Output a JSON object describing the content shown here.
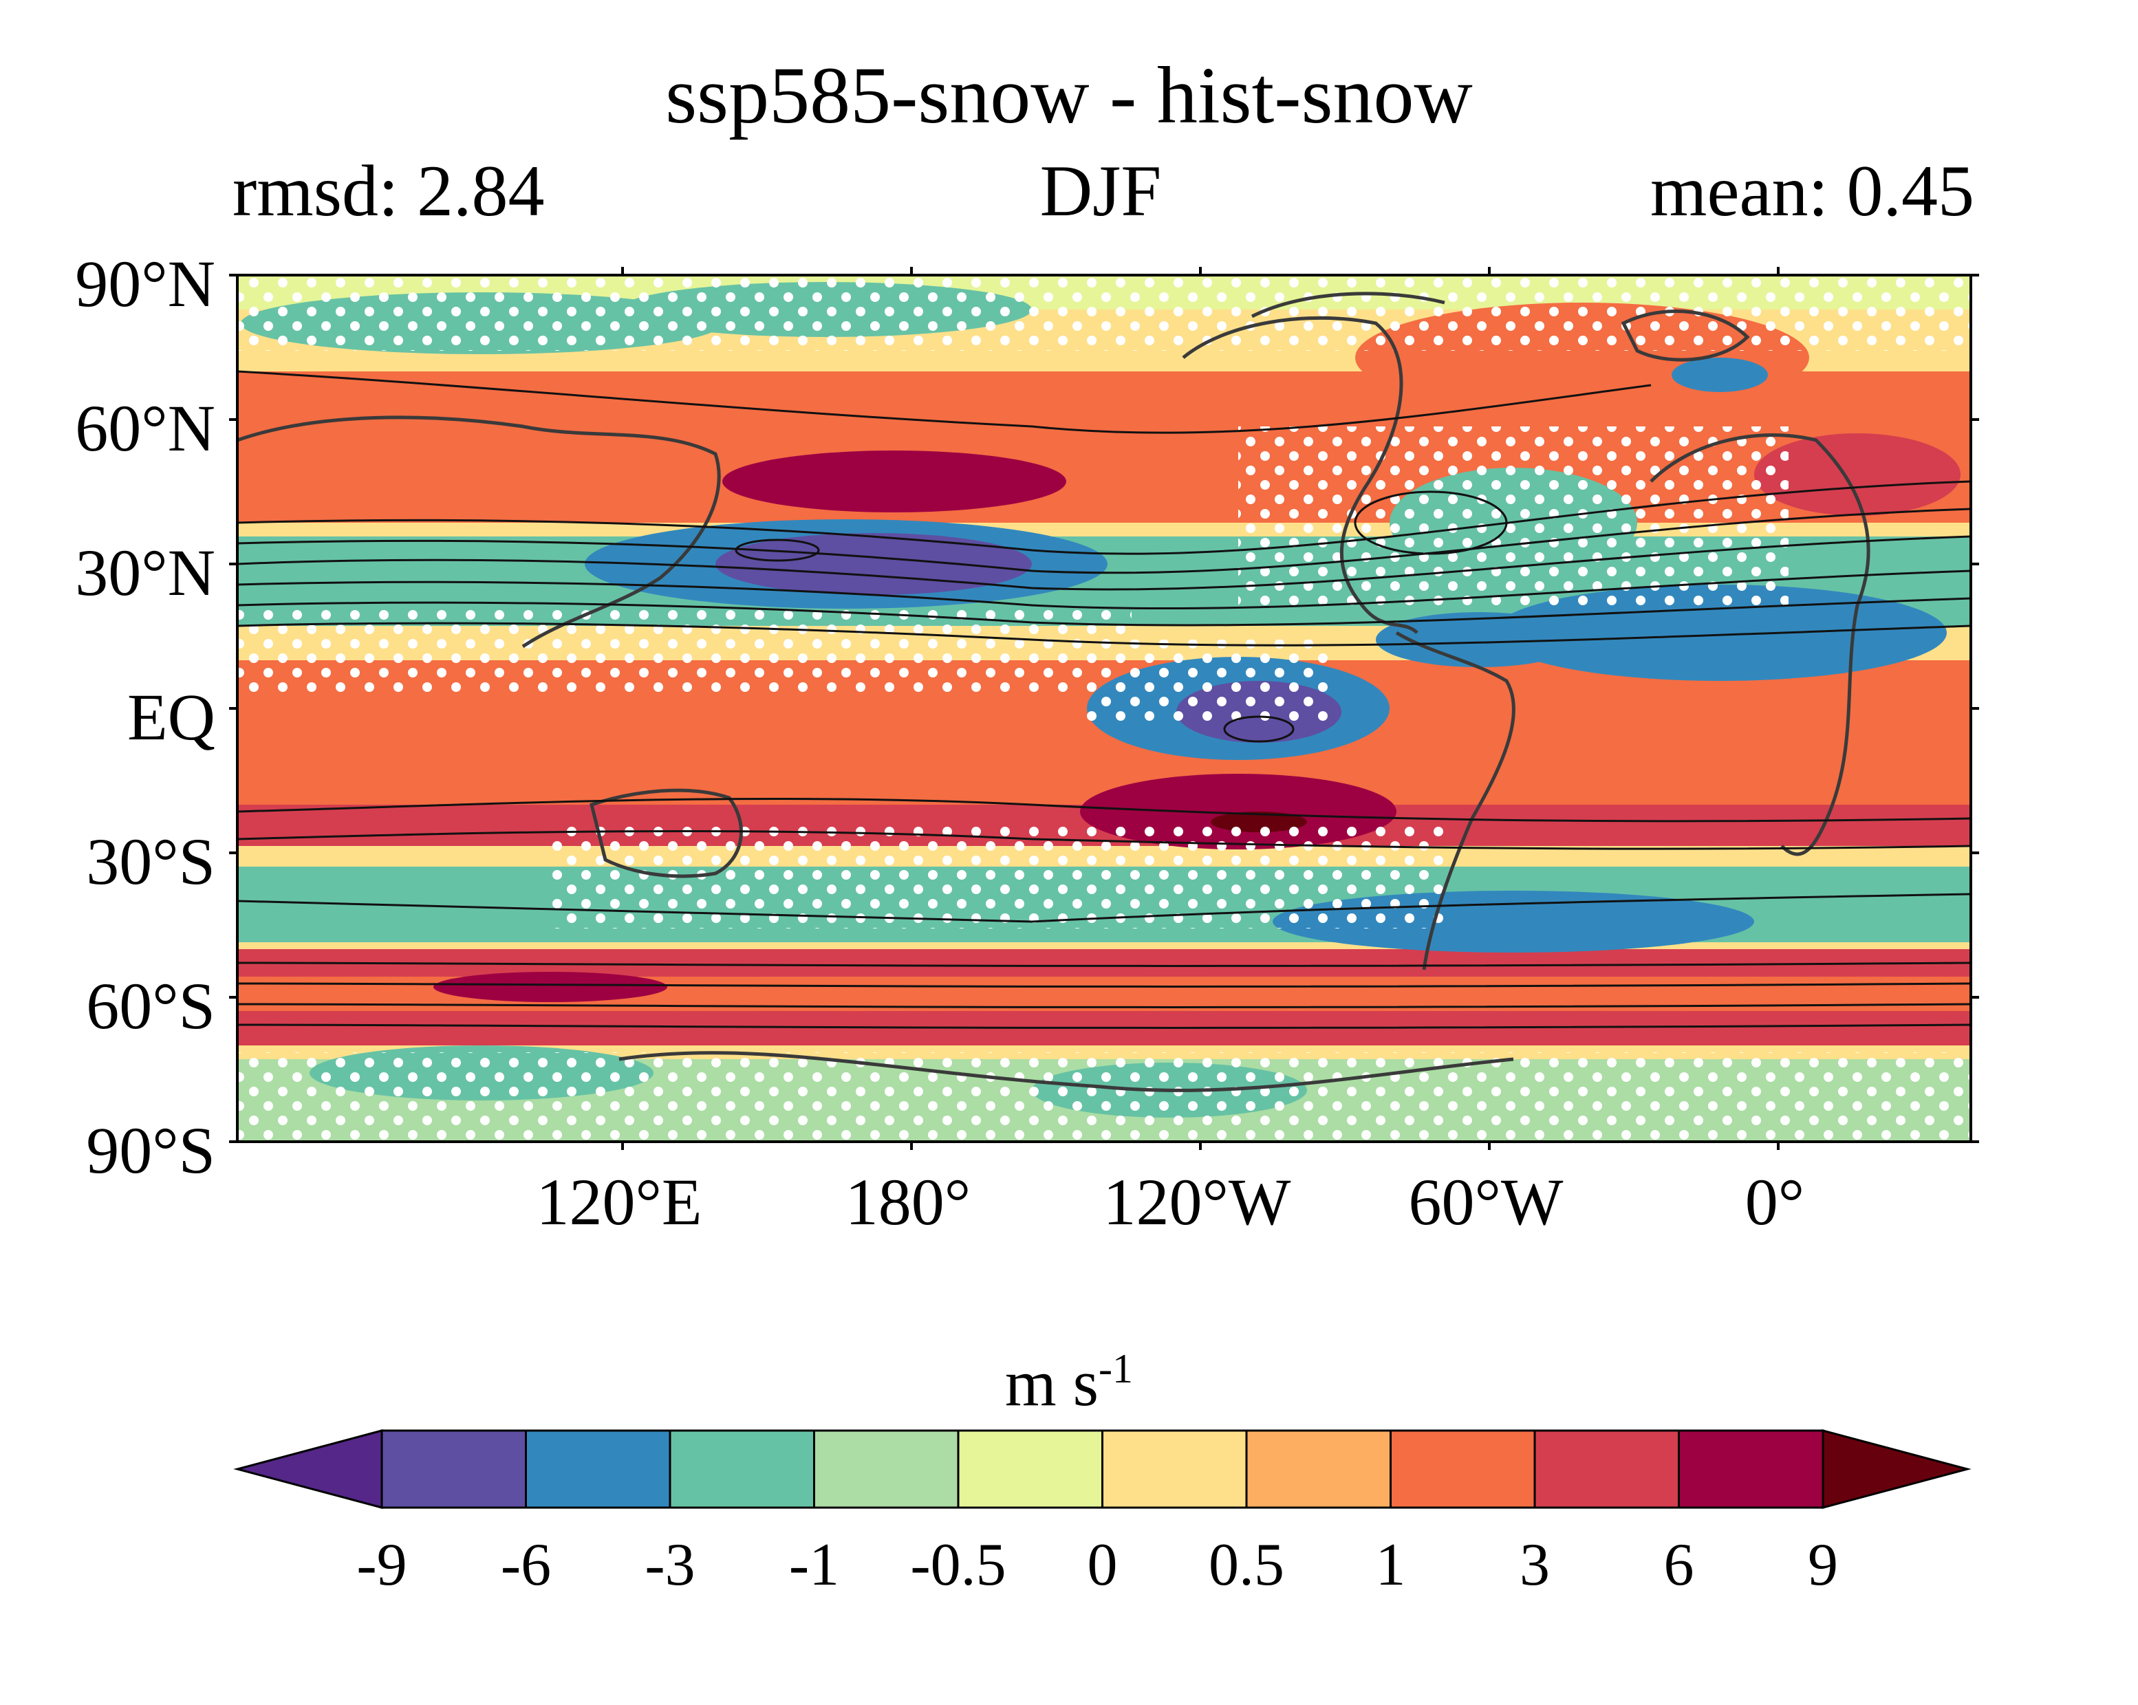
{
  "header": {
    "title": "ssp585-snow - hist-snow",
    "left_stat": "rmsd: 2.84",
    "season": "DJF",
    "right_stat": "mean: 0.45"
  },
  "axes": {
    "lat_labels": [
      "90°N",
      "60°N",
      "30°N",
      "EQ",
      "30°S",
      "60°S",
      "90°S"
    ],
    "lon_labels": [
      "120°E",
      "180°",
      "120°W",
      "60°W",
      "0°"
    ]
  },
  "colorbar": {
    "unit_base": "m s",
    "unit_exp": "-1",
    "ticks": [
      "-9",
      "-6",
      "-3",
      "-1",
      "-0.5",
      "0",
      "0.5",
      "1",
      "3",
      "6",
      "9"
    ],
    "colors": [
      "#5e4fa2",
      "#3288bd",
      "#66c2a5",
      "#abdda4",
      "#e6f598",
      "#fee08b",
      "#fdae61",
      "#f46d43",
      "#d53e4f",
      "#9e0142"
    ],
    "extend_low": "#542788",
    "extend_high": "#67000d"
  }
}
